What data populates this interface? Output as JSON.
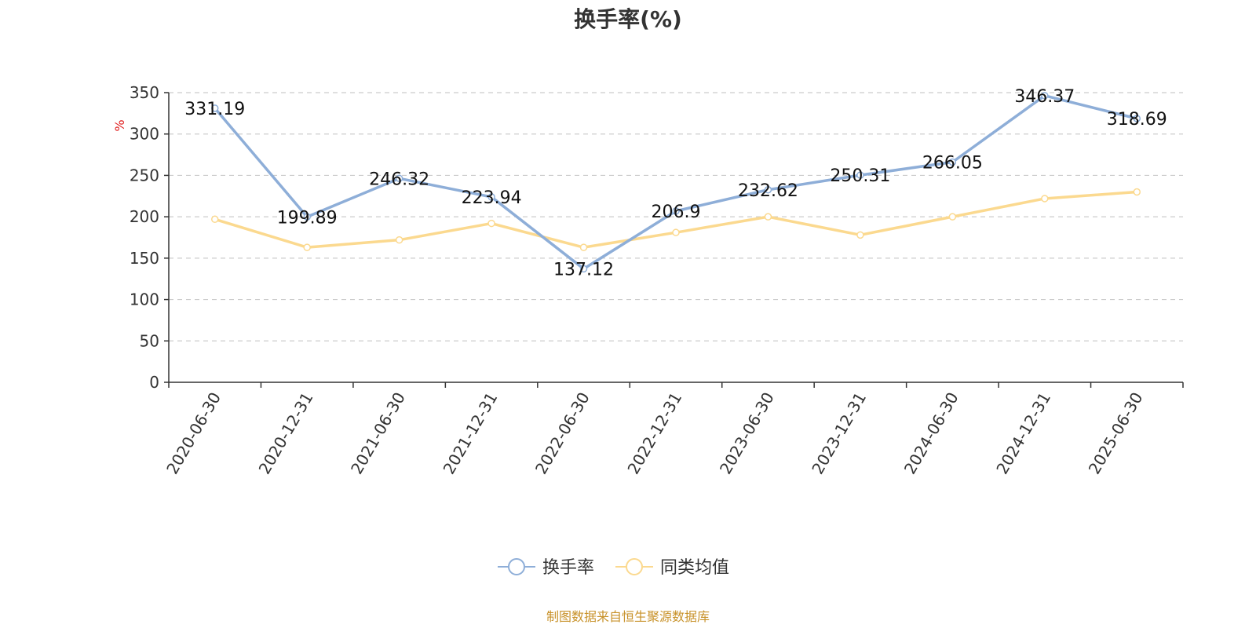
{
  "colors": {
    "series_main": "#8eaed8",
    "series_avg": "#fbd98f",
    "axis": "#333333",
    "grid": "#cccccc",
    "unit": "#e02020",
    "source": "#c8922a"
  },
  "source_text": "制图数据来自恒生聚源数据库",
  "chart_data": {
    "type": "line",
    "title": "换手率(%)",
    "ylabel": "%",
    "xlabel": "",
    "ylim": [
      0,
      350
    ],
    "yticks": [
      0,
      50,
      100,
      150,
      200,
      250,
      300,
      350
    ],
    "grid": true,
    "legend_position": "bottom-center",
    "categories": [
      "2020-06-30",
      "2020-12-31",
      "2021-06-30",
      "2021-12-31",
      "2022-06-30",
      "2022-12-31",
      "2023-06-30",
      "2023-12-31",
      "2024-06-30",
      "2024-12-31",
      "2025-06-30"
    ],
    "series": [
      {
        "name": "换手率",
        "values": [
          331.19,
          199.89,
          246.32,
          223.94,
          137.12,
          206.9,
          232.62,
          250.31,
          266.05,
          346.37,
          318.69
        ],
        "labels_shown": true
      },
      {
        "name": "同类均值",
        "values": [
          197,
          163,
          172,
          192,
          163,
          181,
          200,
          178,
          200,
          222,
          230
        ],
        "labels_shown": false
      }
    ]
  }
}
